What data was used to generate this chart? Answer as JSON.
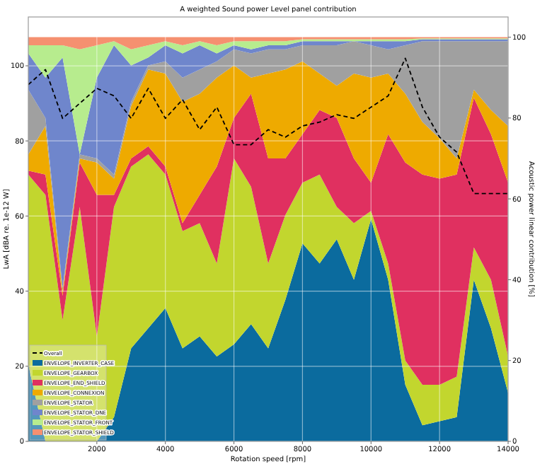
{
  "chart_data": {
    "type": "area",
    "stacked": true,
    "title": "A weighted Sound power Level panel contribution",
    "xlabel": "Rotation speed [rpm]",
    "ylabel": "LwA [dBA re. 1e-12 W]",
    "y2label": "Acoustic power linear contribution [%]",
    "x": [
      0,
      500,
      1000,
      1500,
      2000,
      2500,
      3000,
      3500,
      4000,
      4500,
      5000,
      5500,
      6000,
      6500,
      7000,
      7500,
      8000,
      8500,
      9000,
      9500,
      10000,
      10500,
      11000,
      11500,
      12000,
      12500,
      13000,
      13500,
      14000
    ],
    "xlim": [
      0,
      14000
    ],
    "xticks": [
      2000,
      4000,
      6000,
      8000,
      10000,
      12000,
      14000
    ],
    "ylim": [
      0,
      113
    ],
    "yticks": [
      0,
      20,
      40,
      60,
      80,
      100
    ],
    "y2lim": [
      0,
      105
    ],
    "y2ticks": [
      0,
      20,
      40,
      60,
      80,
      100
    ],
    "grid": true,
    "legend": "bottom left",
    "series": [
      {
        "name": "Overall",
        "type": "line",
        "axis": "y",
        "line_style": "dashed",
        "color": "#000000",
        "values": [
          95,
          99,
          86,
          90,
          94,
          92,
          86,
          94,
          86,
          91,
          83,
          89,
          79,
          79,
          83,
          81,
          84,
          85,
          87,
          86,
          89,
          92,
          102,
          89,
          81,
          77,
          66,
          66,
          66
        ]
      },
      {
        "name": "ENVELOPE_INVERTER_CASE",
        "axis": "y2",
        "color": "#0b6b9e",
        "values": [
          19,
          null,
          null,
          null,
          null,
          6,
          23,
          28,
          33,
          23,
          26,
          21,
          24,
          29,
          23,
          35,
          49,
          44,
          50,
          40,
          55,
          40,
          14,
          4,
          5,
          6,
          40,
          28,
          12
        ]
      },
      {
        "name": "ENVELOPE_GEARBOX",
        "axis": "y2",
        "color": "#c2d62e",
        "values": [
          47,
          61,
          30,
          58,
          26,
          52,
          45,
          43,
          33,
          29,
          28,
          23,
          46,
          34,
          21,
          21,
          15,
          22,
          8,
          14,
          2,
          4,
          6,
          10,
          9,
          10,
          8,
          12,
          9
        ]
      },
      {
        "name": "ENVELOPE_END_SHIELD",
        "axis": "y2",
        "color": "#e03060",
        "values": [
          1,
          5,
          6,
          11,
          35,
          3,
          2,
          2,
          2,
          2,
          7,
          24,
          10,
          23,
          26,
          14,
          12,
          16,
          22,
          16,
          7,
          32,
          49,
          52,
          51,
          50,
          37,
          36,
          43
        ]
      },
      {
        "name": "ENVELOPE_CONNEXION",
        "axis": "y2",
        "color": "#eeaa00",
        "values": [
          4,
          12,
          1,
          1,
          8,
          4,
          13,
          19,
          23,
          30,
          25,
          22,
          13,
          4,
          21,
          22,
          18,
          9,
          8,
          21,
          26,
          15,
          17,
          13,
          10,
          4,
          2,
          6,
          14
        ]
      },
      {
        "name": "ENVELOPE_STATOR",
        "axis": "y2",
        "color": "#a0a0a0",
        "values": [
          16,
          2,
          1,
          1,
          1,
          1,
          1,
          1,
          3,
          6,
          6,
          4,
          4,
          6,
          6,
          5,
          4,
          7,
          10,
          8,
          8,
          6,
          12,
          20,
          24,
          29,
          12,
          17,
          21
        ]
      },
      {
        "name": "ENVELOPE_STATOR_DNE",
        "axis": "y2",
        "color": "#6f86cc",
        "values": [
          9,
          10,
          57,
          0,
          20,
          32,
          9,
          2,
          4,
          6,
          6,
          2,
          1,
          1,
          1,
          1,
          1,
          1,
          1,
          0,
          1,
          2,
          1,
          0.5,
          0.5,
          0.5,
          0.5,
          0.5,
          0.5
        ]
      },
      {
        "name": "ENVELOPE_STATOR_FRONT",
        "axis": "y2",
        "color": "#b7ec8e",
        "values": [
          2,
          8,
          3,
          26,
          8,
          1,
          4,
          3,
          1,
          2,
          1,
          2,
          1,
          2,
          1,
          1,
          0.5,
          0.5,
          0.5,
          0.5,
          0.5,
          0.5,
          0.5,
          0.2,
          0.2,
          0.2,
          0.2,
          0.2,
          0.2
        ]
      },
      {
        "name": "ENVELOPE_STATOR_SHIELD",
        "axis": "y2",
        "color": "#f59070",
        "values": [
          2,
          2,
          2,
          3,
          2,
          1,
          3,
          2,
          1,
          2,
          1,
          2,
          1,
          1,
          1,
          1,
          0.5,
          0.5,
          0.5,
          0.5,
          0.5,
          0.5,
          0.5,
          0.3,
          0.3,
          0.3,
          0.3,
          0.3,
          0.3
        ]
      }
    ]
  }
}
